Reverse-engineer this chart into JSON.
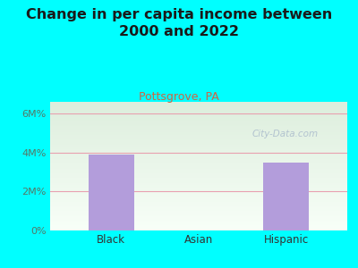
{
  "title": "Change in per capita income between\n2000 and 2022",
  "subtitle": "Pottsgrove, PA",
  "categories": [
    "Black",
    "Asian",
    "Hispanic"
  ],
  "values": [
    3900000,
    0,
    3500000
  ],
  "bar_color": "#b39ddb",
  "background_color": "#00ffff",
  "plot_bg_top": "#ddeedd",
  "plot_bg_bottom": "#f8fff8",
  "title_fontsize": 11.5,
  "title_color": "#1a1a1a",
  "subtitle_color": "#cc6644",
  "subtitle_fontsize": 9,
  "ytick_color": "#557766",
  "xtick_color": "#333333",
  "yticks": [
    0,
    2000000,
    4000000,
    6000000
  ],
  "ytick_labels": [
    "0%",
    "2M%",
    "4M%",
    "6M%"
  ],
  "ylim": [
    0,
    6600000
  ],
  "grid_color": "#e8a0b0",
  "watermark": "City-Data.com",
  "watermark_color": "#aabbcc"
}
